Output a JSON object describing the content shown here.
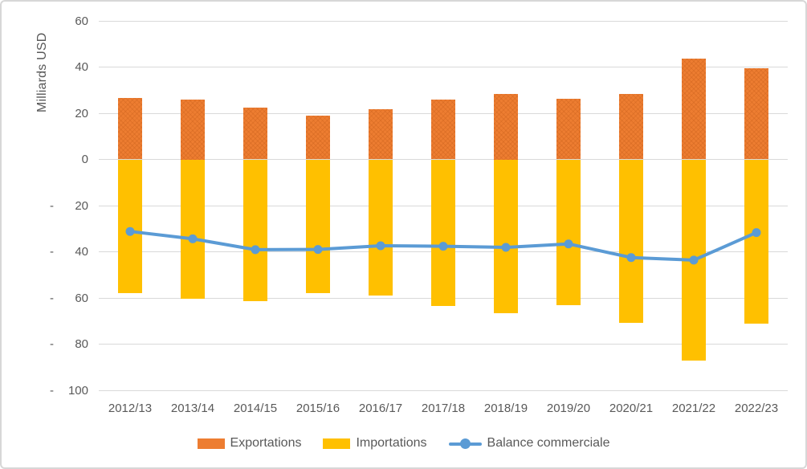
{
  "chart_data": {
    "type": "bar",
    "subtype": "bar-line-combo",
    "title": "",
    "ylabel": "Milliards USD",
    "xlabel": "",
    "categories": [
      "2012/13",
      "2013/14",
      "2014/15",
      "2015/16",
      "2016/17",
      "2017/18",
      "2018/19",
      "2019/20",
      "2020/21",
      "2021/22",
      "2022/23"
    ],
    "series": [
      {
        "name": "Exportations",
        "type": "bar",
        "color": "#ed7d31",
        "values": [
          26.7,
          26.0,
          22.4,
          18.8,
          21.6,
          25.8,
          28.5,
          26.4,
          28.4,
          43.7,
          39.6
        ]
      },
      {
        "name": "Importations",
        "type": "bar",
        "color": "#ffc000",
        "values": [
          -57.9,
          -60.4,
          -61.5,
          -57.8,
          -59.0,
          -63.4,
          -66.6,
          -63.0,
          -70.9,
          -87.3,
          -71.3
        ]
      },
      {
        "name": "Balance commerciale",
        "type": "line",
        "color": "#5b9bd5",
        "values": [
          -31.2,
          -34.4,
          -39.1,
          -39.0,
          -37.4,
          -37.6,
          -38.1,
          -36.6,
          -42.5,
          -43.6,
          -31.7
        ]
      }
    ],
    "ylim": [
      -100,
      60
    ],
    "yticks": [
      60,
      40,
      20,
      0,
      -20,
      -40,
      -60,
      -80,
      -100
    ],
    "grid": true,
    "gridline_color": "#d9d9d9",
    "text_color": "#595959",
    "legend_position": "bottom"
  }
}
